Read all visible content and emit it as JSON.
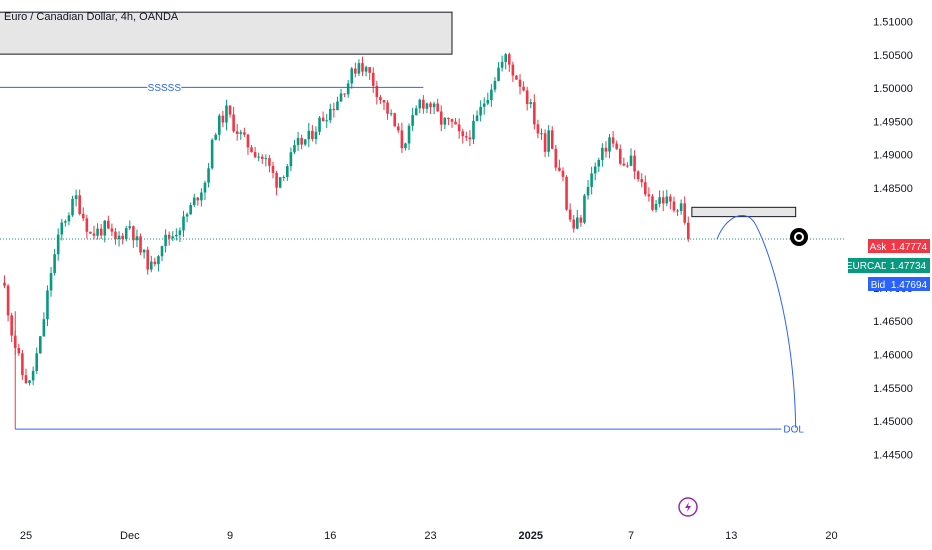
{
  "chart_data": {
    "type": "candlestick",
    "title": "Euro / Canadian Dollar, 4h, OANDA",
    "ylim": [
      1.4425,
      1.5125
    ],
    "y_ticks": [
      "1.51000",
      "1.50500",
      "1.50000",
      "1.49500",
      "1.49000",
      "1.48500",
      "1.47000",
      "1.46500",
      "1.46000",
      "1.45500",
      "1.45000",
      "1.44500"
    ],
    "y_tick_values": [
      1.51,
      1.505,
      1.5,
      1.495,
      1.49,
      1.485,
      1.47,
      1.465,
      1.46,
      1.455,
      1.45,
      1.445
    ],
    "x_ticks": [
      "25",
      "Dec",
      "9",
      "16",
      "23",
      "2025",
      "7",
      "13",
      "20"
    ],
    "x_tick_index": [
      6,
      35,
      63,
      91,
      119,
      147,
      175,
      203,
      231
    ],
    "bars_shown": 237,
    "colors": {
      "up": "#089981",
      "down": "#f23645",
      "blue": "#2962ff"
    },
    "key_levels": [
      {
        "label": "Ask",
        "value": "1.47774",
        "color": "#f23645"
      },
      {
        "label": "EURCAD",
        "value": "1.47734",
        "color": "#089981"
      },
      {
        "label": "Bid",
        "value": "1.47694",
        "color": "#2962ff"
      }
    ],
    "zones": [
      {
        "from": 1.5051,
        "to": 1.5114,
        "x_from": -2,
        "x_to": 125
      },
      {
        "from": 1.4807,
        "to": 1.4821,
        "x_from": 192,
        "x_to": 221
      }
    ],
    "annotations": [
      {
        "text": "SSSSS",
        "price": 1.5001,
        "x_from": -2,
        "x_to": 117
      },
      {
        "text": "DOL",
        "price": 1.4488,
        "x_from": 3,
        "x_to": 217
      }
    ],
    "marker_icon": "target-icon",
    "event_icon": "lightning-icon"
  }
}
